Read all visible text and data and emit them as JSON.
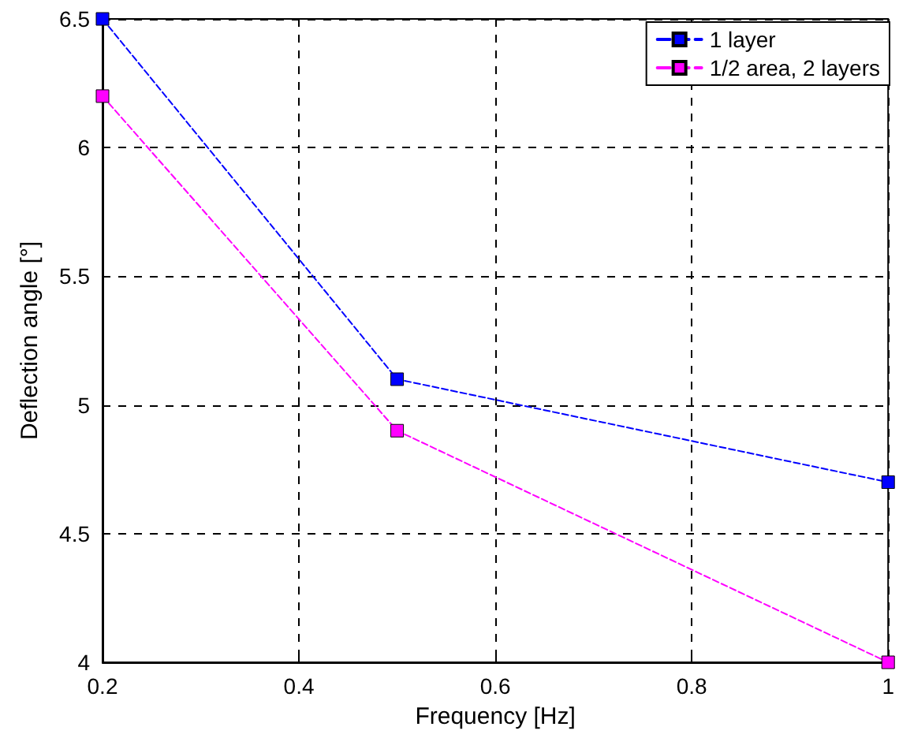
{
  "chart_data": {
    "type": "line",
    "xlabel": "Frequency [Hz]",
    "ylabel": "Deflection angle [°]",
    "x": [
      0.2,
      0.5,
      1
    ],
    "series": [
      {
        "name": "1 layer",
        "color": "#0000ff",
        "values": [
          6.5,
          5.1,
          4.7
        ]
      },
      {
        "name": "1/2 area, 2 layers",
        "color": "#ff00ff",
        "values": [
          6.2,
          4.9,
          4.0
        ]
      }
    ],
    "xlim": [
      0.2,
      1
    ],
    "xticks": [
      0.2,
      0.4,
      0.6,
      0.8,
      1
    ],
    "ylim": [
      4,
      6.5
    ],
    "yticks": [
      4,
      4.5,
      5,
      5.5,
      6,
      6.5
    ],
    "grid": true,
    "legend": "top right",
    "marker": "square",
    "line_style": "dashed"
  }
}
